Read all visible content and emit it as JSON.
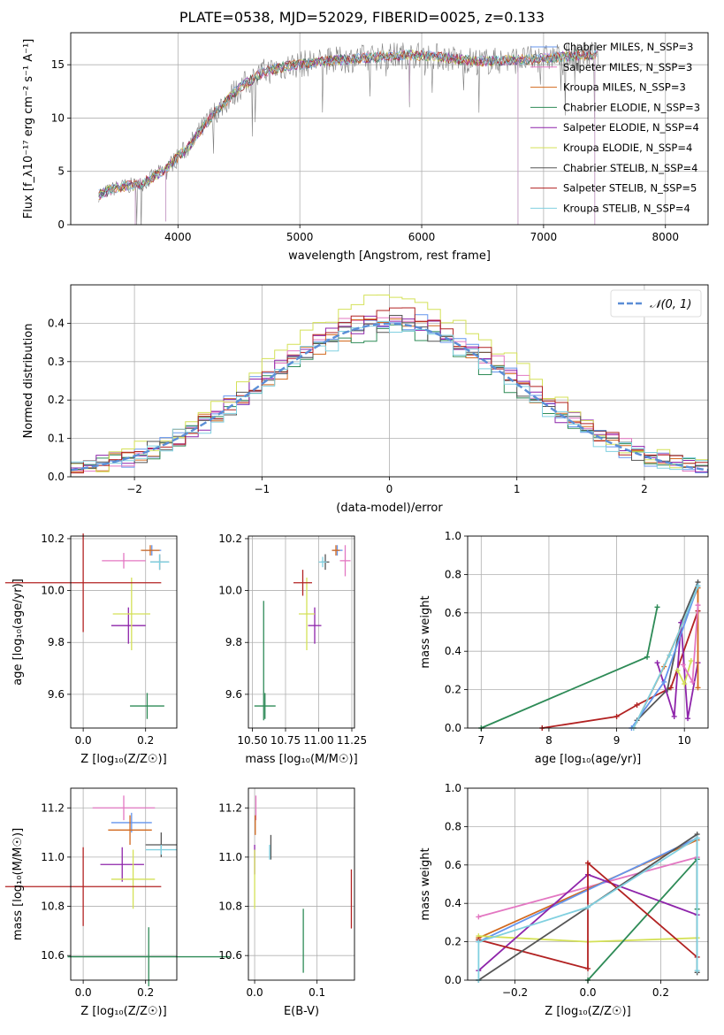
{
  "figure": {
    "title": "PLATE=0538, MJD=52029, FIBERID=0025, z=0.133"
  },
  "colors": {
    "chabrier_miles": "#6495ed",
    "salpeter_miles": "#e377c2",
    "kroupa_miles": "#d2691e",
    "chabrier_elodie": "#2e8b57",
    "salpeter_elodie": "#8e24aa",
    "kroupa_elodie": "#d4e157",
    "chabrier_stelib": "#555555",
    "salpeter_stelib": "#b22222",
    "kroupa_stelib": "#80d0e0"
  },
  "chart_data": [
    {
      "id": "spectrum",
      "type": "line",
      "xlabel": "wavelength [Angstrom, rest frame]",
      "ylabel": "Flux [f_λ10⁻¹⁷ erg cm⁻² s⁻¹ A⁻¹]",
      "xlim": [
        3120,
        8350
      ],
      "ylim": [
        0,
        18
      ],
      "xticks": [
        4000,
        5000,
        6000,
        7000,
        8000
      ],
      "yticks": [
        0,
        5,
        10,
        15
      ],
      "legend_position": "top-right",
      "legend": [
        "Chabrier MILES, N_SSP=3",
        "Salpeter MILES, N_SSP=3",
        "Kroupa MILES, N_SSP=3",
        "Chabrier ELODIE, N_SSP=3",
        "Salpeter ELODIE, N_SSP=4",
        "Kroupa ELODIE, N_SSP=4",
        "Chabrier STELIB, N_SSP=4",
        "Salpeter STELIB, N_SSP=5",
        "Kroupa STELIB, N_SSP=4"
      ],
      "continuum": {
        "x": [
          3350,
          3500,
          3700,
          3900,
          4100,
          4300,
          4500,
          4700,
          4900,
          5100,
          5300,
          5500,
          5700,
          5900,
          6100,
          6300,
          6500,
          6700,
          6900,
          7100,
          7300,
          7450
        ],
        "y": [
          2.8,
          3.5,
          3.8,
          5.2,
          7.5,
          10.5,
          12.8,
          14.3,
          14.9,
          15.2,
          15.4,
          15.6,
          15.8,
          15.9,
          15.8,
          15.5,
          15.3,
          15.4,
          15.5,
          15.7,
          15.9,
          16.0
        ]
      },
      "dips": [
        {
          "x": 3650,
          "y": 0
        },
        {
          "x": 3900,
          "y": 0.3
        },
        {
          "x": 5900,
          "y": 11.5
        },
        {
          "x": 6790,
          "y": 0
        },
        {
          "x": 7420,
          "y": 0
        }
      ]
    },
    {
      "id": "residuals",
      "type": "histogram",
      "xlabel": "(data-model)/error",
      "ylabel": "Normed distribution",
      "xlim": [
        -2.5,
        2.5
      ],
      "ylim": [
        0,
        0.5
      ],
      "xticks": [
        -2,
        -1,
        0,
        1,
        2
      ],
      "yticks": [
        0.0,
        0.1,
        0.2,
        0.3,
        0.4
      ],
      "bin_width": 0.1,
      "reference_label": "𝒩(0, 1)",
      "reference_color": "#5b8ed6",
      "legend_position": "top-right",
      "series_key": [
        "chabrier_miles",
        "salpeter_miles",
        "kroupa_miles",
        "chabrier_elodie",
        "salpeter_elodie",
        "kroupa_elodie",
        "chabrier_stelib",
        "salpeter_stelib",
        "kroupa_stelib"
      ],
      "peak_values": [
        0.41,
        0.42,
        0.4,
        0.38,
        0.41,
        0.47,
        0.4,
        0.42,
        0.39
      ]
    },
    {
      "id": "age_vs_z",
      "type": "errorbar",
      "xlabel": "Z [log₁₀(Z/Z☉)]",
      "ylabel": "age  [log₁₀(age/yr)]",
      "xlim": [
        -0.04,
        0.3
      ],
      "ylim": [
        9.47,
        10.21
      ],
      "xticks": [
        0.0,
        0.2
      ],
      "yticks": [
        9.6,
        9.8,
        10.0,
        10.2
      ],
      "points": [
        {
          "s": "chabrier_miles",
          "x": 0.22,
          "xerr": 0.03,
          "y": 10.155,
          "yerr": 0.02
        },
        {
          "s": "salpeter_miles",
          "x": 0.13,
          "xerr": 0.07,
          "y": 10.115,
          "yerr": 0.03
        },
        {
          "s": "kroupa_miles",
          "x": 0.215,
          "xerr": 0.03,
          "y": 10.155,
          "yerr": 0.02
        },
        {
          "s": "chabrier_elodie",
          "x": 0.205,
          "xerr": 0.055,
          "y": 9.555,
          "yerr": 0.05
        },
        {
          "s": "salpeter_elodie",
          "x": 0.145,
          "xerr": 0.055,
          "y": 9.865,
          "yerr": 0.07
        },
        {
          "s": "kroupa_elodie",
          "x": 0.155,
          "xerr": 0.06,
          "y": 9.91,
          "yerr": 0.14
        },
        {
          "s": "chabrier_stelib",
          "x": 0.245,
          "xerr": 0.03,
          "y": 10.11,
          "yerr": 0.03
        },
        {
          "s": "salpeter_stelib",
          "x": 0.0,
          "xerr": 0.25,
          "y": 10.03,
          "yerr": 0.19
        },
        {
          "s": "kroupa_stelib",
          "x": 0.245,
          "xerr": 0.03,
          "y": 10.11,
          "yerr": 0.03
        }
      ]
    },
    {
      "id": "age_vs_mass",
      "type": "errorbar",
      "xlabel": "mass [log₁₀(M/M☉)]",
      "xlim": [
        10.47,
        11.27
      ],
      "ylim": [
        9.47,
        10.21
      ],
      "xticks": [
        10.5,
        10.75,
        11.0,
        11.25
      ],
      "xtick_labels": [
        "10.50",
        "10.75",
        "11.00",
        "11.25"
      ],
      "yticks": [
        9.6,
        9.8,
        10.0,
        10.2
      ],
      "points": [
        {
          "s": "chabrier_miles",
          "x": 11.14,
          "xerr": 0.04,
          "y": 10.155,
          "yerr": 0.02
        },
        {
          "s": "salpeter_miles",
          "x": 11.2,
          "xerr": 0.04,
          "y": 10.115,
          "yerr": 0.06
        },
        {
          "s": "kroupa_miles",
          "x": 11.13,
          "xerr": 0.03,
          "y": 10.155,
          "yerr": 0.02
        },
        {
          "s": "chabrier_elodie",
          "x": 10.595,
          "xerr": 0.08,
          "y": 9.555,
          "yerr": 0.05
        },
        {
          "s": "chabrier_elodie",
          "x": 10.585,
          "xerr": 0.0,
          "y": 9.73,
          "yerr": 0.23
        },
        {
          "s": "salpeter_elodie",
          "x": 10.97,
          "xerr": 0.05,
          "y": 9.865,
          "yerr": 0.07
        },
        {
          "s": "kroupa_elodie",
          "x": 10.91,
          "xerr": 0.06,
          "y": 9.91,
          "yerr": 0.14
        },
        {
          "s": "chabrier_stelib",
          "x": 11.05,
          "xerr": 0.03,
          "y": 10.11,
          "yerr": 0.03
        },
        {
          "s": "salpeter_stelib",
          "x": 10.88,
          "xerr": 0.07,
          "y": 10.03,
          "yerr": 0.05
        },
        {
          "s": "kroupa_stelib",
          "x": 11.03,
          "xerr": 0.03,
          "y": 10.11,
          "yerr": 0.02
        }
      ]
    },
    {
      "id": "weight_vs_age",
      "type": "line",
      "xlabel": "age  [log₁₀(age/yr)]",
      "ylabel": "mass weight",
      "xlim": [
        6.8,
        10.35
      ],
      "ylim": [
        0,
        1
      ],
      "xticks": [
        7,
        8,
        9,
        10
      ],
      "yticks": [
        0.0,
        0.2,
        0.4,
        0.6,
        0.8,
        1.0
      ],
      "series": [
        {
          "s": "chabrier_elodie",
          "x": [
            7.0,
            9.45,
            9.6
          ],
          "y": [
            0.0,
            0.37,
            0.63
          ]
        },
        {
          "s": "salpeter_stelib",
          "x": [
            7.9,
            9.0,
            9.3,
            9.8,
            10.2
          ],
          "y": [
            0.0,
            0.06,
            0.12,
            0.21,
            0.61
          ]
        },
        {
          "s": "chabrier_stelib",
          "x": [
            9.3,
            9.75,
            9.95,
            10.2
          ],
          "y": [
            0.04,
            0.2,
            0.55,
            0.76
          ]
        },
        {
          "s": "salpeter_elodie",
          "x": [
            9.6,
            9.85,
            9.95,
            10.05,
            10.2
          ],
          "y": [
            0.34,
            0.06,
            0.55,
            0.05,
            0.34
          ]
        },
        {
          "s": "kroupa_miles",
          "x": [
            9.25,
            9.7,
            10.2,
            10.2
          ],
          "y": [
            0.0,
            0.32,
            0.73,
            0.21
          ]
        },
        {
          "s": "chabrier_miles",
          "x": [
            9.22,
            9.7,
            10.2
          ],
          "y": [
            0.0,
            0.24,
            0.74
          ]
        },
        {
          "s": "kroupa_elodie",
          "x": [
            9.9,
            10.0,
            10.1
          ],
          "y": [
            0.3,
            0.23,
            0.35
          ]
        },
        {
          "s": "salpeter_miles",
          "x": [
            9.98,
            10.12,
            10.2
          ],
          "y": [
            0.33,
            0.24,
            0.64
          ]
        },
        {
          "s": "kroupa_stelib",
          "x": [
            9.25,
            9.78,
            10.2
          ],
          "y": [
            0.0,
            0.38,
            0.74
          ]
        }
      ]
    },
    {
      "id": "mass_vs_z",
      "type": "errorbar",
      "xlabel": "Z [log₁₀(Z/Z☉)]",
      "ylabel": "mass [log₁₀(M/M☉)]",
      "xlim": [
        -0.04,
        0.3
      ],
      "ylim": [
        10.5,
        11.28
      ],
      "xticks": [
        0.0,
        0.2
      ],
      "yticks": [
        10.6,
        10.8,
        11.0,
        11.2
      ],
      "points": [
        {
          "s": "chabrier_miles",
          "x": 0.155,
          "xerr": 0.065,
          "y": 11.14,
          "yerr": 0.04
        },
        {
          "s": "salpeter_miles",
          "x": 0.13,
          "xerr": 0.1,
          "y": 11.2,
          "yerr": 0.05
        },
        {
          "s": "kroupa_miles",
          "x": 0.15,
          "xerr": 0.07,
          "y": 11.11,
          "yerr": 0.06
        },
        {
          "s": "chabrier_elodie",
          "x": 0.21,
          "xerr": 0.26,
          "y": 10.595,
          "yerr": 0.12
        },
        {
          "s": "salpeter_elodie",
          "x": 0.125,
          "xerr": 0.07,
          "y": 10.97,
          "yerr": 0.07
        },
        {
          "s": "kroupa_elodie",
          "x": 0.16,
          "xerr": 0.07,
          "y": 10.91,
          "yerr": 0.12
        },
        {
          "s": "chabrier_stelib",
          "x": 0.25,
          "xerr": 0.05,
          "y": 11.05,
          "yerr": 0.05
        },
        {
          "s": "salpeter_stelib",
          "x": 0.0,
          "xerr": 0.25,
          "y": 10.88,
          "yerr": 0.16
        },
        {
          "s": "kroupa_stelib",
          "x": 0.25,
          "xerr": 0.05,
          "y": 11.03,
          "yerr": 0.02
        }
      ]
    },
    {
      "id": "mass_vs_ebv",
      "type": "errorbar",
      "xlabel": "E(B-V)",
      "xlim": [
        -0.01,
        0.16
      ],
      "ylim": [
        10.5,
        11.28
      ],
      "xticks": [
        0.0,
        0.1
      ],
      "yticks": [
        10.6,
        10.8,
        11.0,
        11.2
      ],
      "points": [
        {
          "s": "salpeter_miles",
          "x": 0.002,
          "xerr": 0.0,
          "y": 11.2,
          "yerr": 0.05
        },
        {
          "s": "kroupa_miles",
          "x": 0.001,
          "xerr": 0.0,
          "y": 11.13,
          "yerr": 0.04
        },
        {
          "s": "chabrier_elodie",
          "x": 0.078,
          "xerr": 0.0,
          "y": 10.66,
          "yerr": 0.13
        },
        {
          "s": "salpeter_elodie",
          "x": 0.0,
          "xerr": 0.0,
          "y": 10.99,
          "yerr": 0.06
        },
        {
          "s": "kroupa_elodie",
          "x": 0.0,
          "xerr": 0.0,
          "y": 10.91,
          "yerr": 0.12
        },
        {
          "s": "chabrier_stelib",
          "x": 0.026,
          "xerr": 0.0,
          "y": 11.04,
          "yerr": 0.05
        },
        {
          "s": "salpeter_stelib",
          "x": 0.155,
          "xerr": 0.0,
          "y": 10.83,
          "yerr": 0.12
        },
        {
          "s": "kroupa_stelib",
          "x": 0.024,
          "xerr": 0.0,
          "y": 11.02,
          "yerr": 0.03
        }
      ]
    },
    {
      "id": "weight_vs_z",
      "type": "line",
      "xlabel": "Z [log₁₀(Z/Z☉)]",
      "ylabel": "mass weight",
      "xlim": [
        -0.33,
        0.33
      ],
      "ylim": [
        0,
        1
      ],
      "xticks": [
        -0.2,
        0.0,
        0.2
      ],
      "xtick_labels": [
        "−0.2",
        "0.0",
        "0.2"
      ],
      "yticks": [
        0.0,
        0.2,
        0.4,
        0.6,
        0.8,
        1.0
      ],
      "series": [
        {
          "s": "salpeter_miles",
          "x": [
            -0.3,
            0.3
          ],
          "y": [
            0.33,
            0.64
          ]
        },
        {
          "s": "kroupa_miles",
          "x": [
            -0.3,
            0.3
          ],
          "y": [
            0.22,
            0.73
          ]
        },
        {
          "s": "chabrier_miles",
          "x": [
            -0.3,
            0.3
          ],
          "y": [
            0.2,
            0.74
          ]
        },
        {
          "s": "kroupa_elodie",
          "x": [
            -0.3,
            0.0,
            0.3
          ],
          "y": [
            0.23,
            0.2,
            0.22
          ]
        },
        {
          "s": "salpeter_elodie",
          "x": [
            -0.3,
            0.0,
            0.3
          ],
          "y": [
            0.05,
            0.55,
            0.34
          ]
        },
        {
          "s": "chabrier_elodie",
          "x": [
            0.0,
            0.3,
            0.3
          ],
          "y": [
            0.0,
            0.63,
            0.37
          ]
        },
        {
          "s": "salpeter_stelib",
          "x": [
            -0.3,
            0.0,
            0.0,
            0.3
          ],
          "y": [
            0.21,
            0.06,
            0.61,
            0.12
          ]
        },
        {
          "s": "chabrier_stelib",
          "x": [
            -0.3,
            0.3,
            0.3
          ],
          "y": [
            0.0,
            0.76,
            0.04
          ]
        },
        {
          "s": "kroupa_stelib",
          "x": [
            -0.3,
            -0.3,
            0.0,
            0.3,
            0.3
          ],
          "y": [
            0.0,
            0.2,
            0.38,
            0.74,
            0.05
          ]
        }
      ]
    }
  ]
}
